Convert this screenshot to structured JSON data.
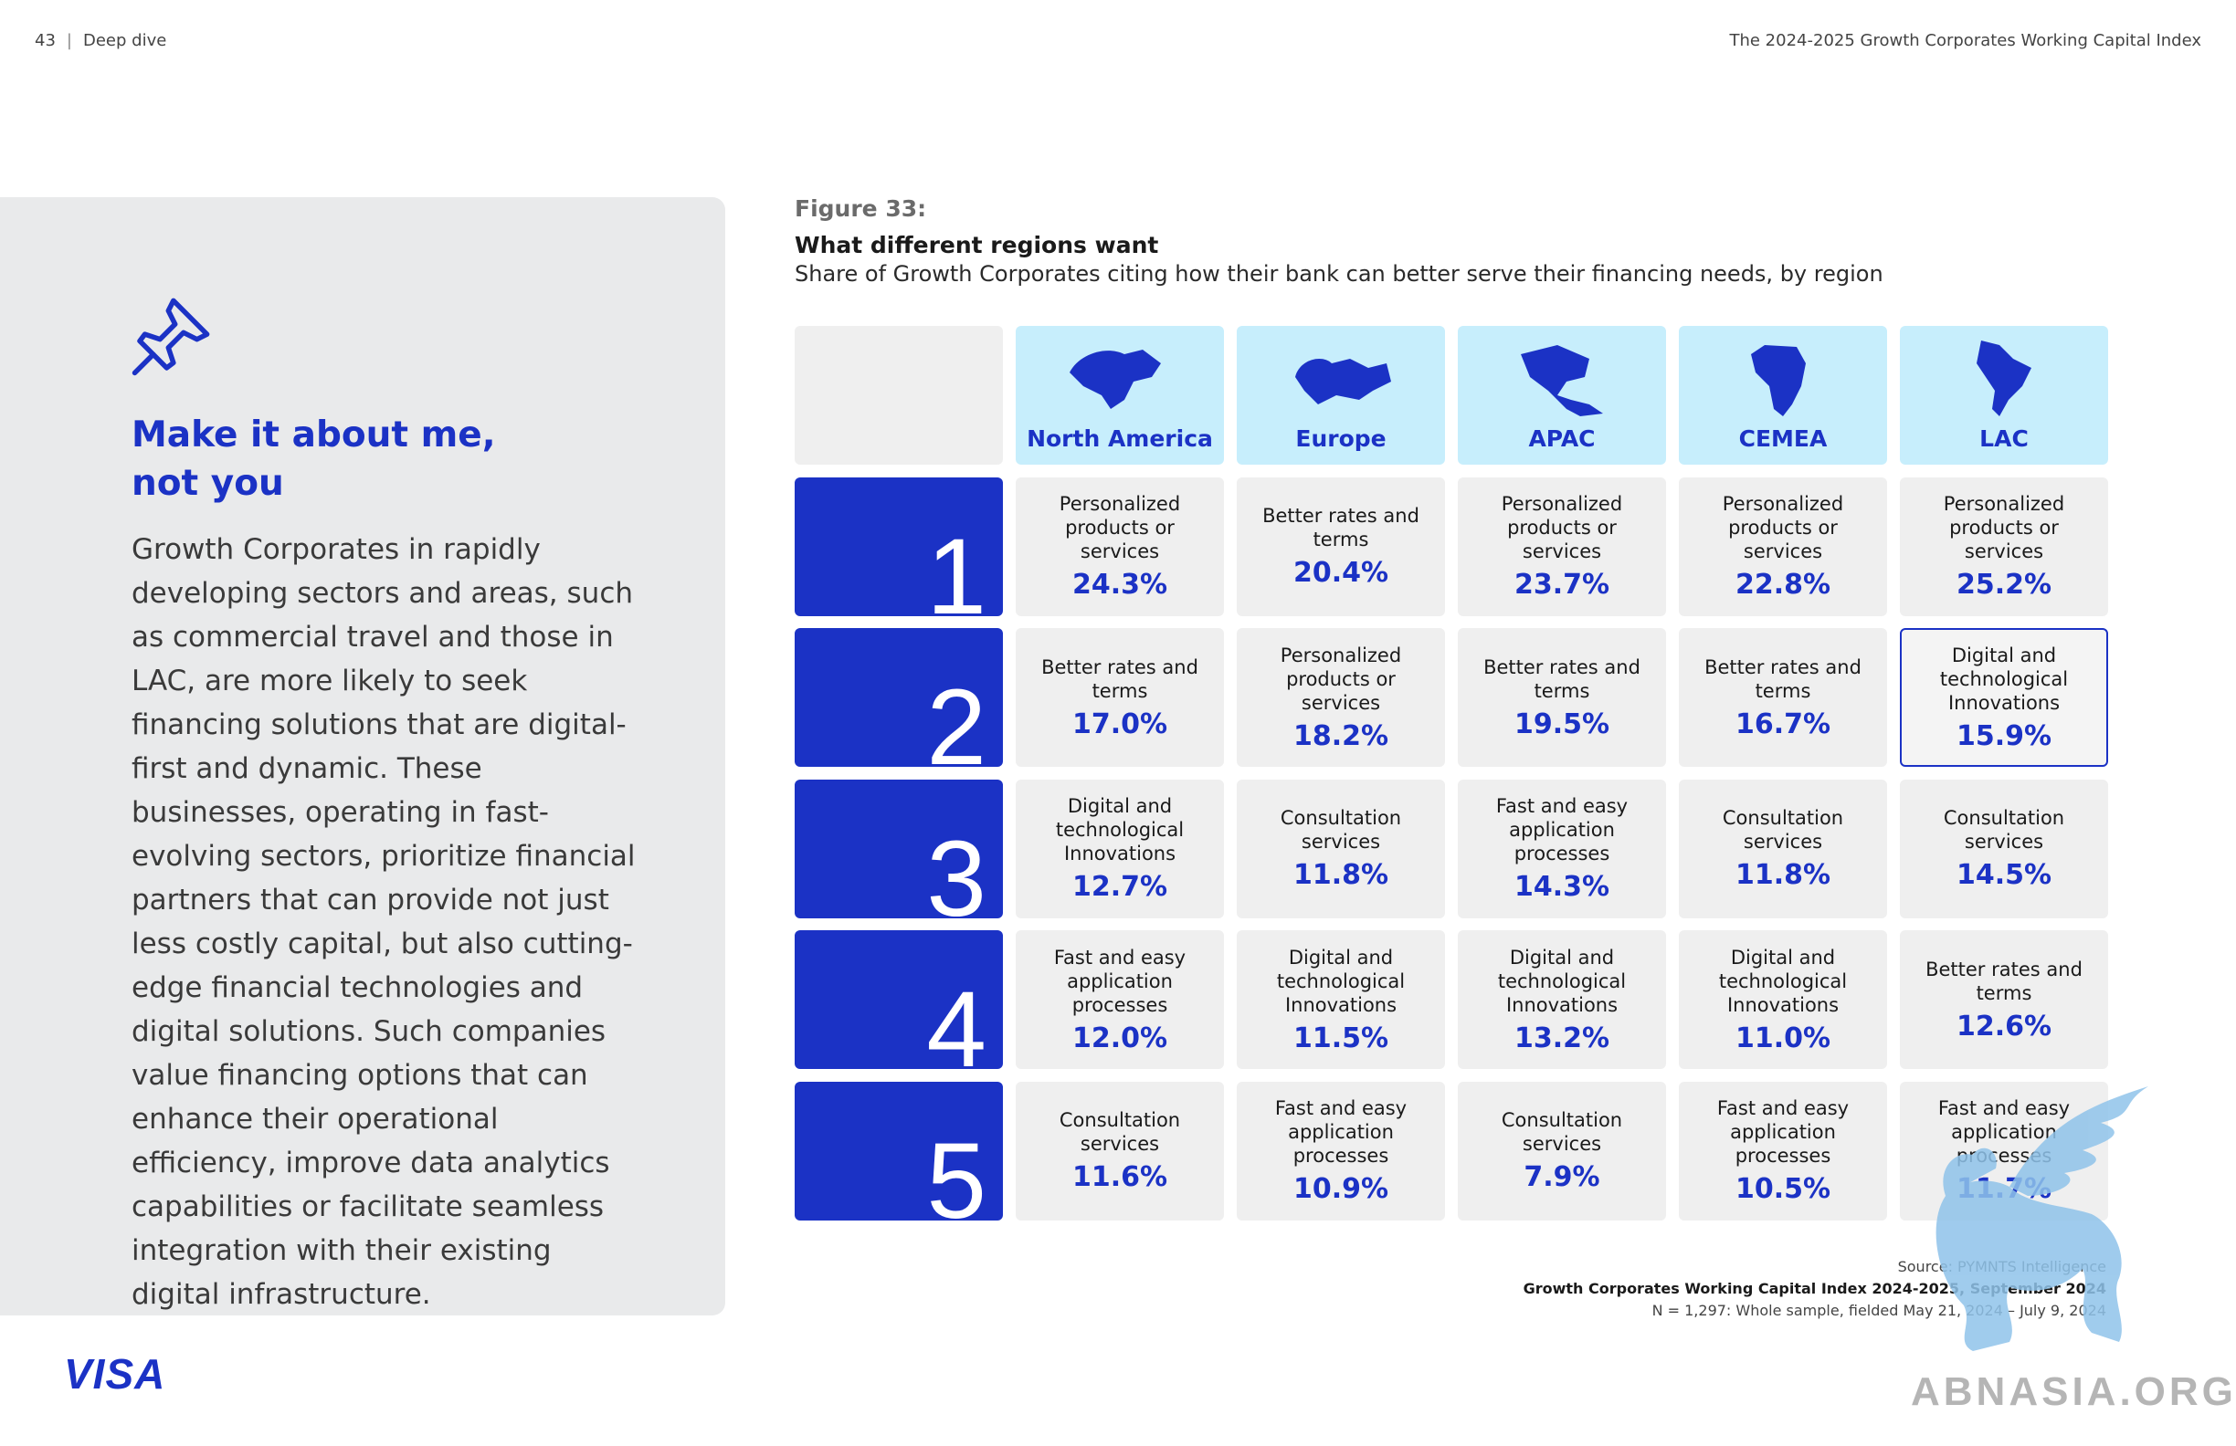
{
  "header": {
    "page_number": "43",
    "section": "Deep dive",
    "report_title": "The 2024-2025 Growth Corporates Working Capital Index"
  },
  "side": {
    "icon": "pushpin-icon",
    "heading_line1": "Make it about me,",
    "heading_line2": "not you",
    "body": "Growth Corporates in rapidly developing sectors and areas, such as commercial travel and those in LAC, are more likely to seek financing solutions that are digital-first and dynamic. These businesses, operating in fast-evolving sectors, prioritize financial partners that can provide not just less costly capital, but also cutting-edge financial technologies and digital solutions. Such companies value financing options that can enhance their operational efficiency, improve data analytics capabilities or facilitate seamless integration with their existing digital infrastructure."
  },
  "figure": {
    "label": "Figure 33:",
    "title": "What different regions want",
    "subtitle": "Share of Growth Corporates citing how their bank can better serve their financing needs, by region",
    "regions": [
      "North America",
      "Europe",
      "APAC",
      "CEMEA",
      "LAC"
    ],
    "ranks": [
      "1",
      "2",
      "3",
      "4",
      "5"
    ],
    "rows": [
      [
        {
          "label": "Personalized products or services",
          "value": "24.3%"
        },
        {
          "label": "Better rates and terms",
          "value": "20.4%"
        },
        {
          "label": "Personalized products or services",
          "value": "23.7%"
        },
        {
          "label": "Personalized products or services",
          "value": "22.8%"
        },
        {
          "label": "Personalized products or services",
          "value": "25.2%"
        }
      ],
      [
        {
          "label": "Better rates and terms",
          "value": "17.0%"
        },
        {
          "label": "Personalized products or services",
          "value": "18.2%"
        },
        {
          "label": "Better rates and terms",
          "value": "19.5%"
        },
        {
          "label": "Better rates and terms",
          "value": "16.7%"
        },
        {
          "label": "Digital and technological Innovations",
          "value": "15.9%",
          "highlight": true
        }
      ],
      [
        {
          "label": "Digital and technological Innovations",
          "value": "12.7%"
        },
        {
          "label": "Consultation services",
          "value": "11.8%"
        },
        {
          "label": "Fast and easy application processes",
          "value": "14.3%"
        },
        {
          "label": "Consultation services",
          "value": "11.8%"
        },
        {
          "label": "Consultation services",
          "value": "14.5%"
        }
      ],
      [
        {
          "label": "Fast and easy application processes",
          "value": "12.0%"
        },
        {
          "label": "Digital and technological Innovations",
          "value": "11.5%"
        },
        {
          "label": "Digital and technological Innovations",
          "value": "13.2%"
        },
        {
          "label": "Digital and technological Innovations",
          "value": "11.0%"
        },
        {
          "label": "Better rates and terms",
          "value": "12.6%"
        }
      ],
      [
        {
          "label": "Consultation services",
          "value": "11.6%"
        },
        {
          "label": "Fast and easy application processes",
          "value": "10.9%"
        },
        {
          "label": "Consultation services",
          "value": "7.9%"
        },
        {
          "label": "Fast and easy application processes",
          "value": "10.5%"
        },
        {
          "label": "Fast and easy application processes",
          "value": "11.7%"
        }
      ]
    ],
    "source_line1": "Source: PYMNTS Intelligence",
    "source_line2": "Growth Corporates Working Capital Index 2024-2025, September 2024",
    "source_line3": "N = 1,297: Whole sample, fielded May 21, 2024 – July 9, 2024"
  },
  "footer": {
    "brand_logo": "VISA",
    "watermark": "ABNASIA.ORG"
  },
  "colors": {
    "accent": "#1b32c5",
    "region_bg": "#c7eefc",
    "cell_bg": "#efefef",
    "panel_bg": "#e9eaeb"
  }
}
